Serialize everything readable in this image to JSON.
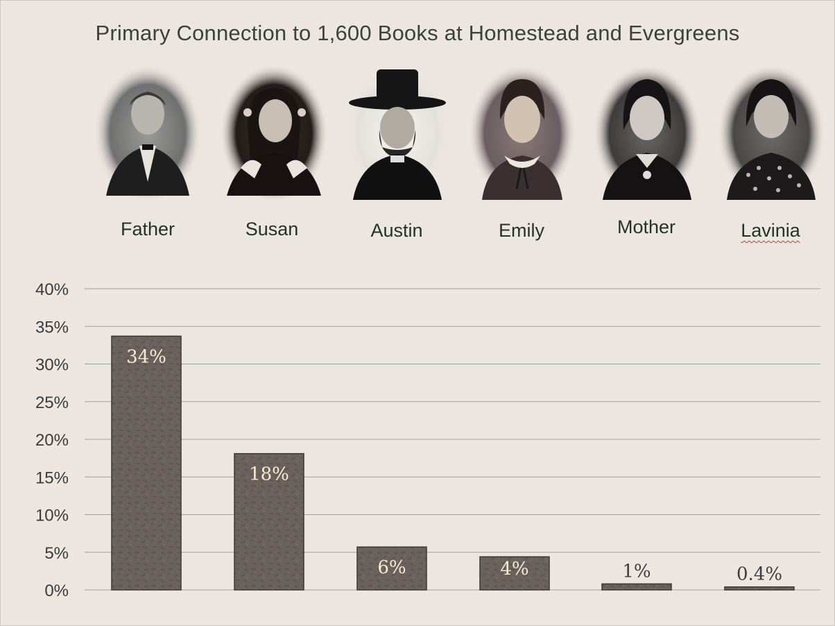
{
  "title": "Primary Connection to 1,600 Books at Homestead and Evergreens",
  "people": [
    {
      "name": "Father",
      "icon": "portrait-father-icon"
    },
    {
      "name": "Susan",
      "icon": "portrait-susan-icon"
    },
    {
      "name": "Austin",
      "icon": "portrait-austin-icon"
    },
    {
      "name": "Emily",
      "icon": "portrait-emily-icon"
    },
    {
      "name": "Mother",
      "icon": "portrait-mother-icon"
    },
    {
      "name": "Lavinia",
      "icon": "portrait-lavinia-icon"
    }
  ],
  "colors": {
    "background": "#ede6e0",
    "bar_fill": "#6b625d",
    "bar_border": "#3e3633",
    "gridline": "#9aa39a",
    "label_on_bar": "#f3ecd0",
    "label_above_bar": "#3d3d3d",
    "name_text": "#1f3326",
    "title_text": "#3c4237"
  },
  "chart_data": {
    "type": "bar",
    "title": "Primary Connection to 1,600 Books at Homestead and Evergreens",
    "categories": [
      "Father",
      "Susan",
      "Austin",
      "Emily",
      "Mother",
      "Lavinia"
    ],
    "values": [
      33.7,
      18.1,
      5.7,
      4.4,
      0.8,
      0.4
    ],
    "data_labels": [
      "34%",
      "18%",
      "6%",
      "4%",
      "1%",
      "0.4%"
    ],
    "ylim": [
      0,
      40
    ],
    "y_ticks": [
      "0%",
      "5%",
      "10%",
      "15%",
      "20%",
      "25%",
      "30%",
      "35%",
      "40%"
    ],
    "y_tick_values": [
      0,
      5,
      10,
      15,
      20,
      25,
      30,
      35,
      40
    ],
    "grid": true,
    "legend": "none",
    "xlabel": "",
    "ylabel": ""
  }
}
